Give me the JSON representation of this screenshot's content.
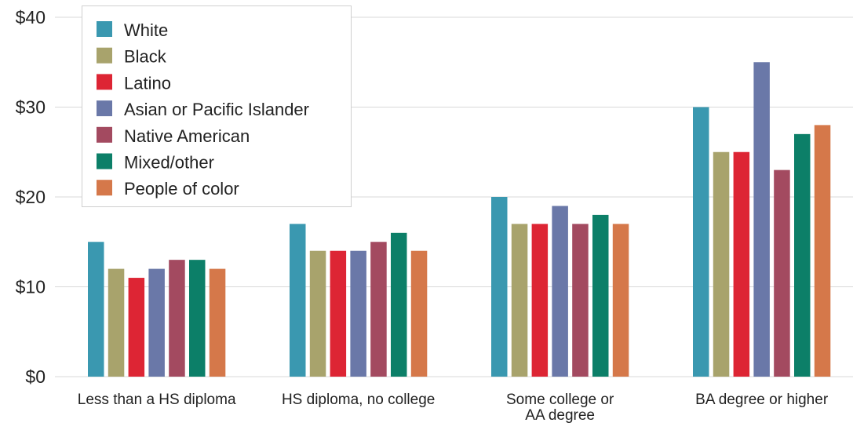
{
  "chart_data": {
    "type": "bar",
    "categories": [
      [
        "Less than a HS diploma"
      ],
      [
        "HS diploma, no college"
      ],
      [
        "Some college or",
        "AA degree"
      ],
      [
        "BA degree or higher"
      ]
    ],
    "series": [
      {
        "name": "White",
        "color": "#3a98b0",
        "values": [
          15,
          17,
          20,
          30
        ]
      },
      {
        "name": "Black",
        "color": "#a8a36c",
        "values": [
          12,
          14,
          17,
          25
        ]
      },
      {
        "name": "Latino",
        "color": "#dd2534",
        "values": [
          11,
          14,
          17,
          25
        ]
      },
      {
        "name": "Asian or Pacific Islander",
        "color": "#6a78a8",
        "values": [
          12,
          14,
          19,
          35
        ]
      },
      {
        "name": "Native American",
        "color": "#a34a60",
        "values": [
          13,
          15,
          17,
          23
        ]
      },
      {
        "name": "Mixed/other",
        "color": "#0c7f68",
        "values": [
          13,
          16,
          18,
          27
        ]
      },
      {
        "name": "People of color",
        "color": "#d5784a",
        "values": [
          12,
          14,
          17,
          28
        ]
      }
    ],
    "yticks": [
      "$0",
      "$10",
      "$20",
      "$30",
      "$40"
    ],
    "ytick_values": [
      0,
      10,
      20,
      30,
      40
    ],
    "ylim": [
      0,
      40
    ],
    "grid": true,
    "legend_position": "top-left"
  }
}
